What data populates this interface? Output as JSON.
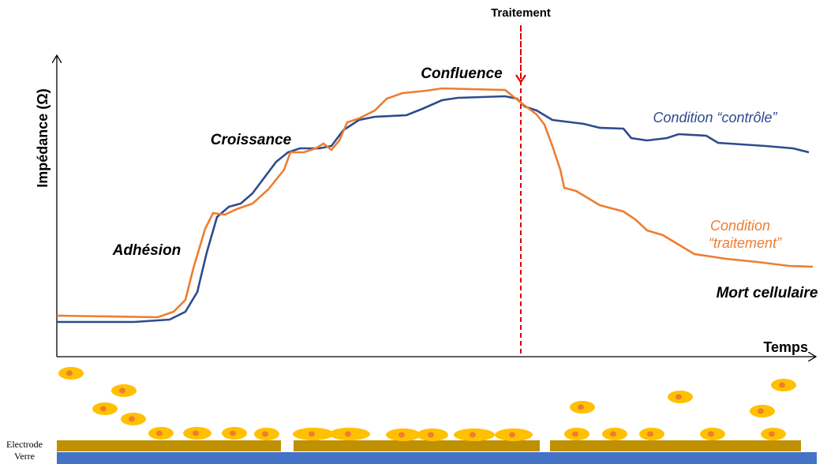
{
  "labels": {
    "treatment": "Traitement",
    "y_axis": "Impédance (Ω)",
    "x_axis": "Temps",
    "confluence": "Confluence",
    "growth": "Croissance",
    "adhesion": "Adhésion",
    "control": "Condition “contrôle”",
    "treated_1": "Condition",
    "treated_2": "“traitement”",
    "death": "Mort cellulaire",
    "electrode": "Electrode",
    "glass": "Verre"
  }
}
